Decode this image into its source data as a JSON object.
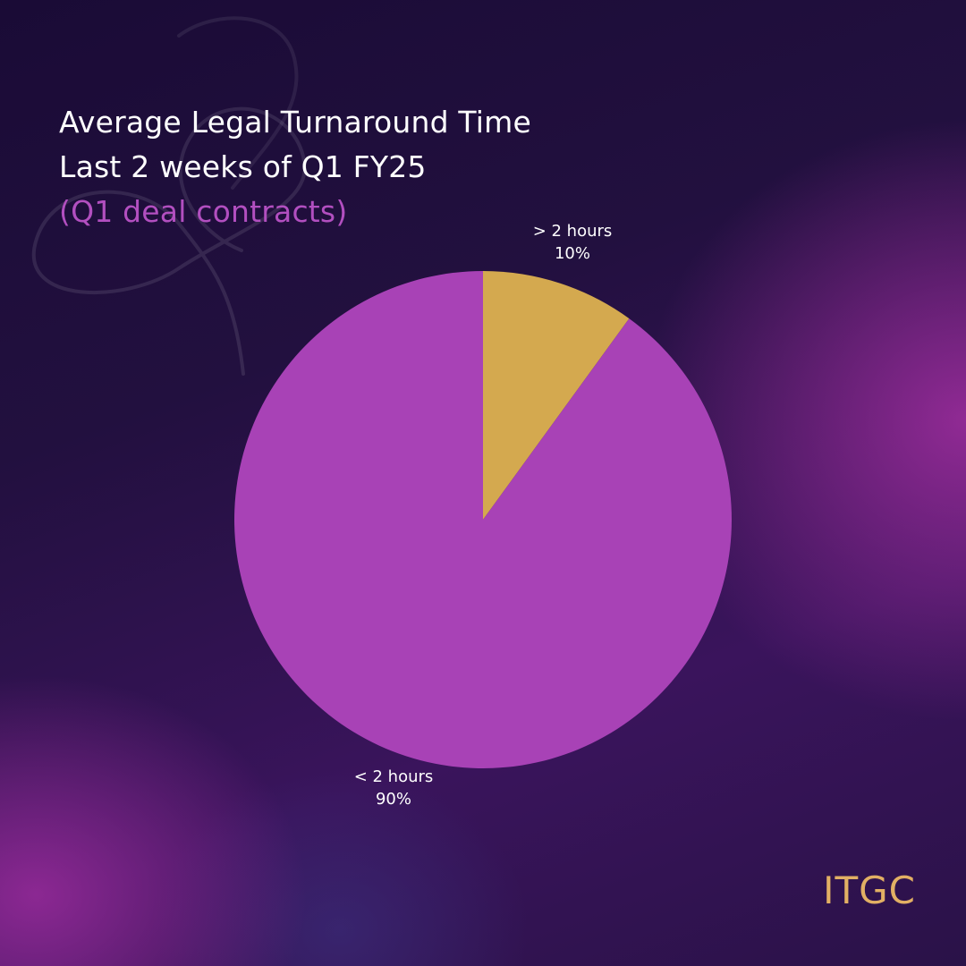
{
  "title": {
    "line1": "Average Legal Turnaround Time",
    "line2": "Last 2 weeks of Q1 FY25",
    "line3": "(Q1 deal contracts)"
  },
  "chart_data": {
    "type": "pie",
    "slices": [
      {
        "label": "> 2 hours",
        "value": 10,
        "value_label": "10%",
        "color": "#d4a94f"
      },
      {
        "label": "< 2 hours",
        "value": 90,
        "value_label": "90%",
        "color": "#a842b6"
      }
    ],
    "start_angle_deg": 0,
    "direction": "clockwise"
  },
  "brand": {
    "logo_text": "ITGC",
    "logo_color": "#e2b064"
  }
}
